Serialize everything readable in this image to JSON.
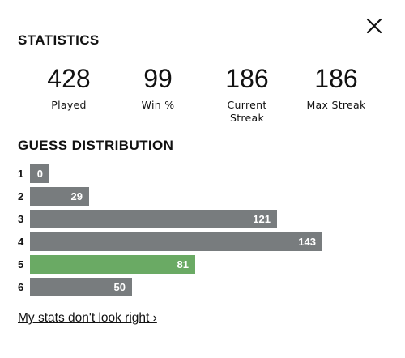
{
  "header": {
    "close_icon": "close-icon"
  },
  "statistics": {
    "title": "STATISTICS",
    "items": [
      {
        "value": "428",
        "label": "Played"
      },
      {
        "value": "99",
        "label": "Win %"
      },
      {
        "value": "186",
        "label": "Current\nStreak"
      },
      {
        "value": "186",
        "label": "Max Streak"
      }
    ]
  },
  "distribution": {
    "title": "GUESS DISTRIBUTION",
    "rows": [
      {
        "guess": "1",
        "count": "0",
        "value": 0,
        "highlight": false
      },
      {
        "guess": "2",
        "count": "29",
        "value": 29,
        "highlight": false
      },
      {
        "guess": "3",
        "count": "121",
        "value": 121,
        "highlight": false
      },
      {
        "guess": "4",
        "count": "143",
        "value": 143,
        "highlight": false
      },
      {
        "guess": "5",
        "count": "81",
        "value": 81,
        "highlight": true
      },
      {
        "guess": "6",
        "count": "50",
        "value": 50,
        "highlight": false
      }
    ],
    "bar_color": "#787c7e",
    "highlight_color": "#6aaa64"
  },
  "footer": {
    "link_label": "My stats don't look right ›"
  }
}
